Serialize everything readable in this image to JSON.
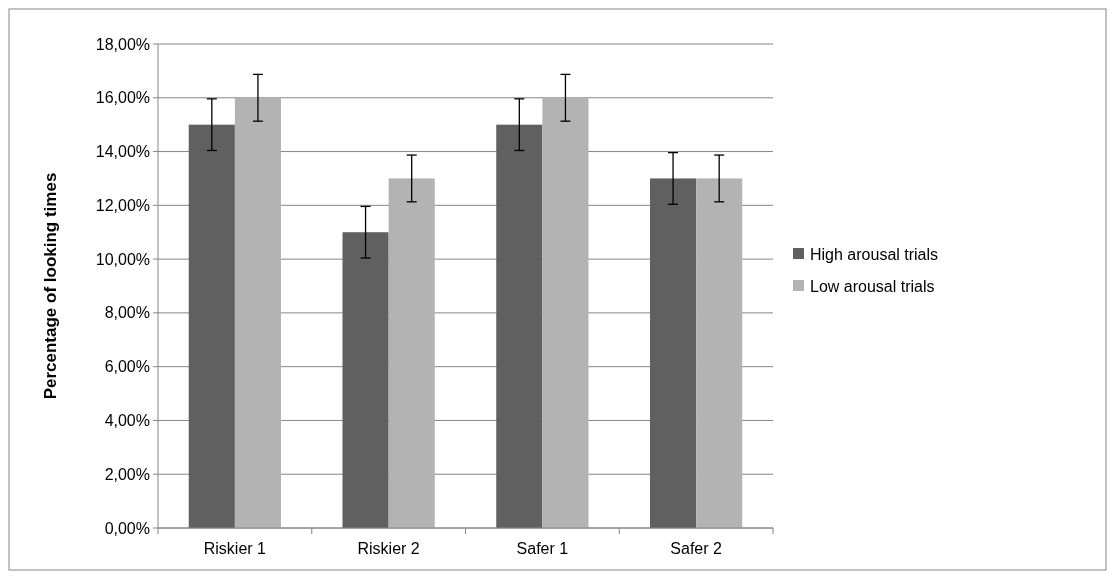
{
  "chart_data": {
    "type": "bar",
    "ylabel": "Percentage of looking times",
    "categories": [
      "Riskier 1",
      "Riskier 2",
      "Safer 1",
      "Safer 2"
    ],
    "series": [
      {
        "name": "High arousal trials",
        "color": "#606060",
        "values": [
          15,
          11,
          15,
          13
        ],
        "errors": [
          0.96,
          0.96,
          0.96,
          0.96
        ]
      },
      {
        "name": "Low arousal trials",
        "color": "#b3b3b3",
        "values": [
          16,
          13,
          16,
          13
        ],
        "errors": [
          0.87,
          0.87,
          0.87,
          0.87
        ]
      }
    ],
    "ylim": [
      0,
      18
    ],
    "yticks": [
      {
        "value": 0,
        "label": "0,00%"
      },
      {
        "value": 2,
        "label": "2,00%"
      },
      {
        "value": 4,
        "label": "4,00%"
      },
      {
        "value": 6,
        "label": "6,00%"
      },
      {
        "value": 8,
        "label": "8,00%"
      },
      {
        "value": 10,
        "label": "10,00%"
      },
      {
        "value": 12,
        "label": "12,00%"
      },
      {
        "value": 14,
        "label": "14,00%"
      },
      {
        "value": 16,
        "label": "16,00%"
      },
      {
        "value": 18,
        "label": "18,00%"
      }
    ],
    "grid": "y",
    "legend": "right"
  }
}
